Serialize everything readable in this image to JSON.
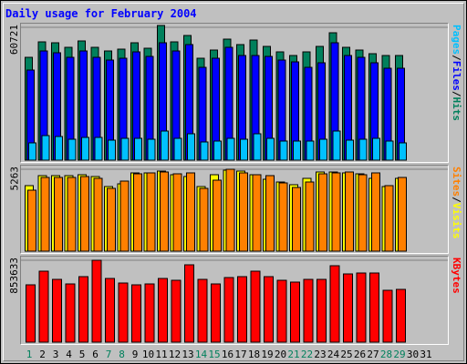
{
  "title": "Daily usage for February 2004",
  "colors": {
    "hits": "#00805c",
    "files": "#0000ff",
    "pages": "#00c0ff",
    "visits": "#ffff00",
    "sites": "#ff8000",
    "kbytes": "#ff0000",
    "weekday_label": "#000000",
    "weekend_label": "#00805c"
  },
  "chart_data": [
    {
      "type": "bar",
      "panel": "hits-files-pages",
      "y_axis_max_label": "60721",
      "ylim": [
        0,
        60721
      ],
      "legend": [
        "Pages",
        "Files",
        "Hits"
      ],
      "categories": [
        "1",
        "2",
        "3",
        "4",
        "5",
        "6",
        "7",
        "8",
        "9",
        "10",
        "11",
        "12",
        "13",
        "14",
        "15",
        "16",
        "17",
        "18",
        "19",
        "20",
        "21",
        "22",
        "23",
        "24",
        "25",
        "26",
        "27",
        "28",
        "29"
      ],
      "series": [
        {
          "name": "Hits",
          "values": [
            47000,
            54000,
            53800,
            51600,
            54300,
            51500,
            49700,
            50800,
            53800,
            51200,
            61500,
            54200,
            57100,
            46500,
            50500,
            55300,
            52700,
            54800,
            51800,
            49300,
            47800,
            49400,
            52100,
            58200,
            51600,
            50300,
            48600,
            47700,
            47800
          ]
        },
        {
          "name": "Files",
          "values": [
            41100,
            50000,
            49200,
            47000,
            49900,
            46900,
            45900,
            46700,
            49400,
            47500,
            53600,
            50000,
            52900,
            42400,
            46700,
            51700,
            47700,
            48000,
            47500,
            45800,
            44800,
            42500,
            44400,
            53800,
            47700,
            46900,
            44500,
            42000,
            42000
          ]
        },
        {
          "name": "Pages",
          "values": [
            7700,
            11400,
            10800,
            9700,
            10200,
            10400,
            9200,
            10000,
            9800,
            9700,
            13400,
            10000,
            12000,
            8400,
            8700,
            9900,
            9500,
            11900,
            10100,
            8900,
            8700,
            8900,
            9700,
            13200,
            9300,
            9600,
            10000,
            8800,
            8000
          ]
        }
      ]
    },
    {
      "type": "bar",
      "panel": "visits-sites",
      "y_axis_max_label": "5263",
      "ylim": [
        0,
        5263
      ],
      "legend": [
        "Sites",
        "Visits"
      ],
      "categories": [
        "1",
        "2",
        "3",
        "4",
        "5",
        "6",
        "7",
        "8",
        "9",
        "10",
        "11",
        "12",
        "13",
        "14",
        "15",
        "16",
        "17",
        "18",
        "19",
        "20",
        "21",
        "22",
        "23",
        "24",
        "25",
        "26",
        "27",
        "28",
        "29"
      ],
      "series": [
        {
          "name": "Visits",
          "values": [
            4200,
            4840,
            4860,
            4870,
            4920,
            4790,
            4180,
            4340,
            5050,
            5010,
            5160,
            4940,
            4770,
            4160,
            4890,
            5180,
            5130,
            4900,
            4630,
            4440,
            4270,
            4700,
            5080,
            5080,
            5050,
            4980,
            4690,
            4180,
            4670
          ]
        },
        {
          "name": "Sites",
          "values": [
            3900,
            4740,
            4760,
            4730,
            4770,
            4650,
            4060,
            4500,
            4990,
            5000,
            5090,
            4970,
            5050,
            4060,
            4590,
            5240,
            5000,
            4890,
            4860,
            4380,
            4110,
            4450,
            4980,
            5030,
            5070,
            4890,
            5000,
            4230,
            4760
          ]
        }
      ]
    },
    {
      "type": "bar",
      "panel": "kbytes",
      "y_axis_max_label": "853633",
      "ylim": [
        0,
        853633
      ],
      "legend": [
        "KBytes"
      ],
      "categories": [
        "1",
        "2",
        "3",
        "4",
        "5",
        "6",
        "7",
        "8",
        "9",
        "10",
        "11",
        "12",
        "13",
        "14",
        "15",
        "16",
        "17",
        "18",
        "19",
        "20",
        "21",
        "22",
        "23",
        "24",
        "25",
        "26",
        "27",
        "28",
        "29"
      ],
      "series": [
        {
          "name": "KBytes",
          "values": [
            593000,
            742000,
            655000,
            606000,
            685000,
            856000,
            663000,
            613000,
            598000,
            608000,
            666000,
            649000,
            804000,
            654000,
            611000,
            676000,
            683000,
            743000,
            681000,
            646000,
            622000,
            650000,
            655000,
            795000,
            707000,
            717000,
            720000,
            540000,
            550000
          ]
        }
      ]
    }
  ],
  "x_axis": {
    "days": [
      "1",
      "2",
      "3",
      "4",
      "5",
      "6",
      "7",
      "8",
      "9",
      "10",
      "11",
      "12",
      "13",
      "14",
      "15",
      "16",
      "17",
      "18",
      "19",
      "20",
      "21",
      "22",
      "23",
      "24",
      "25",
      "26",
      "27",
      "28",
      "29",
      "30",
      "31"
    ],
    "weekend_days": [
      "1",
      "7",
      "8",
      "14",
      "15",
      "21",
      "22",
      "28",
      "29"
    ]
  }
}
